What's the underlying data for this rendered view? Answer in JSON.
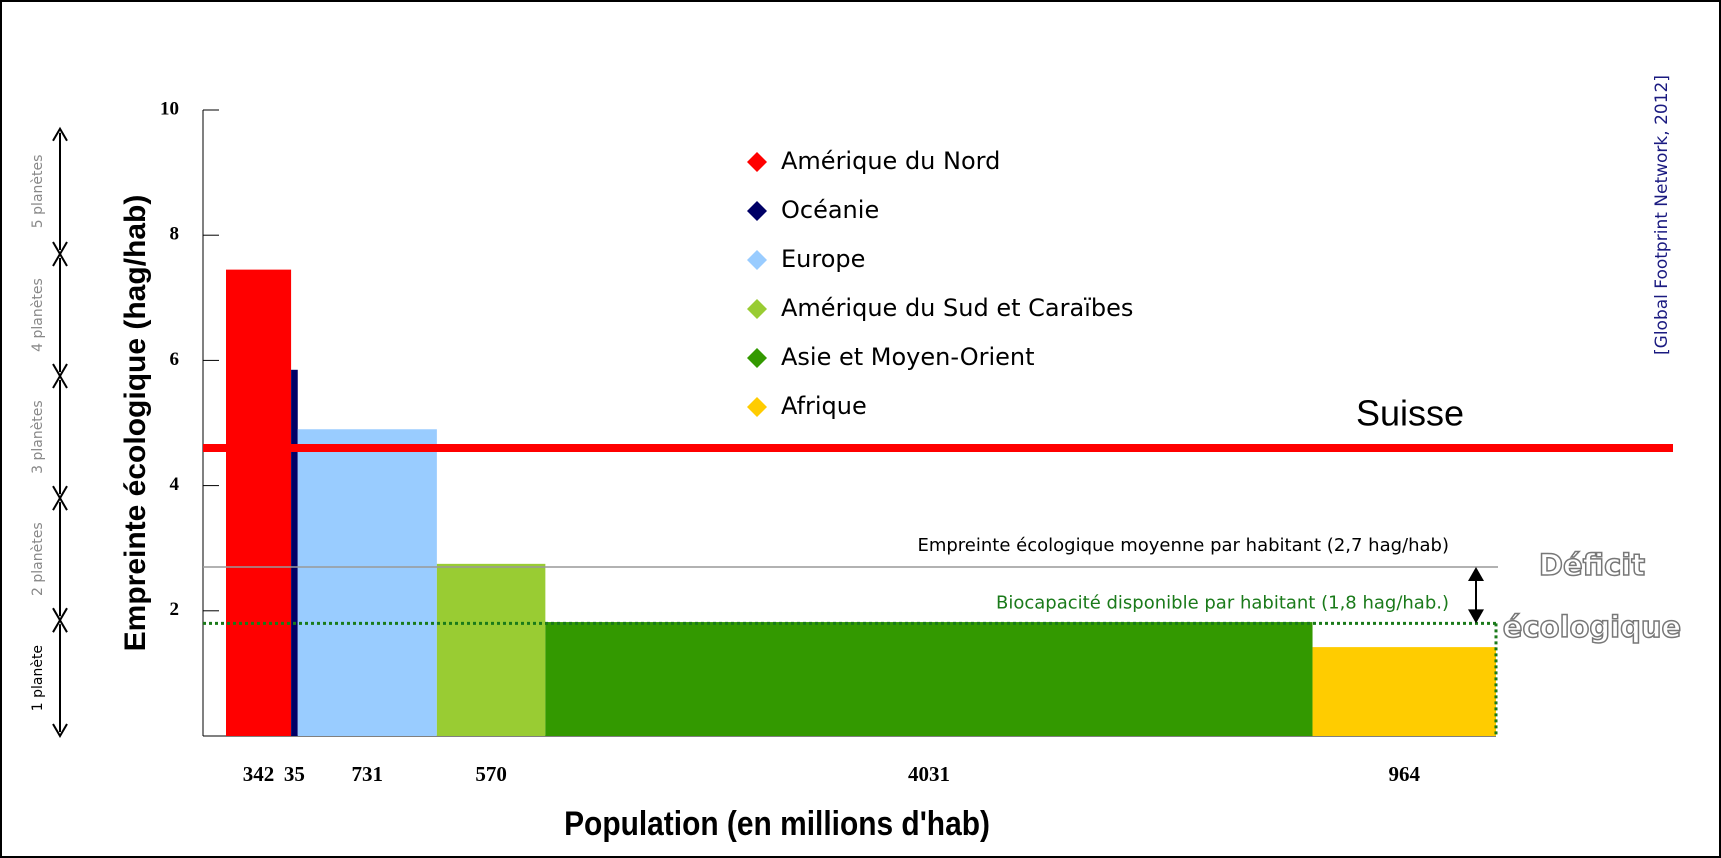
{
  "chart_data": {
    "type": "bar",
    "x_label": "Population (en millions d'hab)",
    "y_label": "Empreinte écologique (hag/hab)",
    "source": "[Global Footprint Network, 2012]",
    "categories": [
      "Amérique du Nord",
      "Océanie",
      "Europe",
      "Amérique du Sud et Caraïbes",
      "Asie et Moyen-Orient",
      "Afrique"
    ],
    "widths": [
      342,
      35,
      731,
      570,
      4031,
      964
    ],
    "values": [
      7.45,
      5.85,
      4.9,
      2.75,
      1.82,
      1.42
    ],
    "colors": [
      "#ff0000",
      "#000066",
      "#99ccff",
      "#99cc33",
      "#339900",
      "#ffcc00"
    ],
    "ylim": [
      0,
      10
    ],
    "yticks": [
      2,
      4,
      6,
      8,
      10
    ],
    "reference_lines": [
      {
        "label": "Suisse",
        "value": 4.6,
        "color": "#ff0000"
      },
      {
        "label": "Empreinte écologique moyenne par habitant (2,7 hag/hab)",
        "value": 2.7,
        "color": "#999999"
      },
      {
        "label": "Biocapacité disponible par habitant (1,8 hag/hab.)",
        "value": 1.8,
        "color": "#1a7a1a"
      }
    ],
    "deficit_label": [
      "Déficit",
      "écologique"
    ],
    "planets": {
      "labels": [
        "1 planète",
        "2 planètes",
        "3 planètes",
        "4 planètes",
        "5 planètes"
      ],
      "bounds": [
        0,
        1.85,
        3.8,
        5.75,
        7.7,
        9.7
      ]
    }
  }
}
